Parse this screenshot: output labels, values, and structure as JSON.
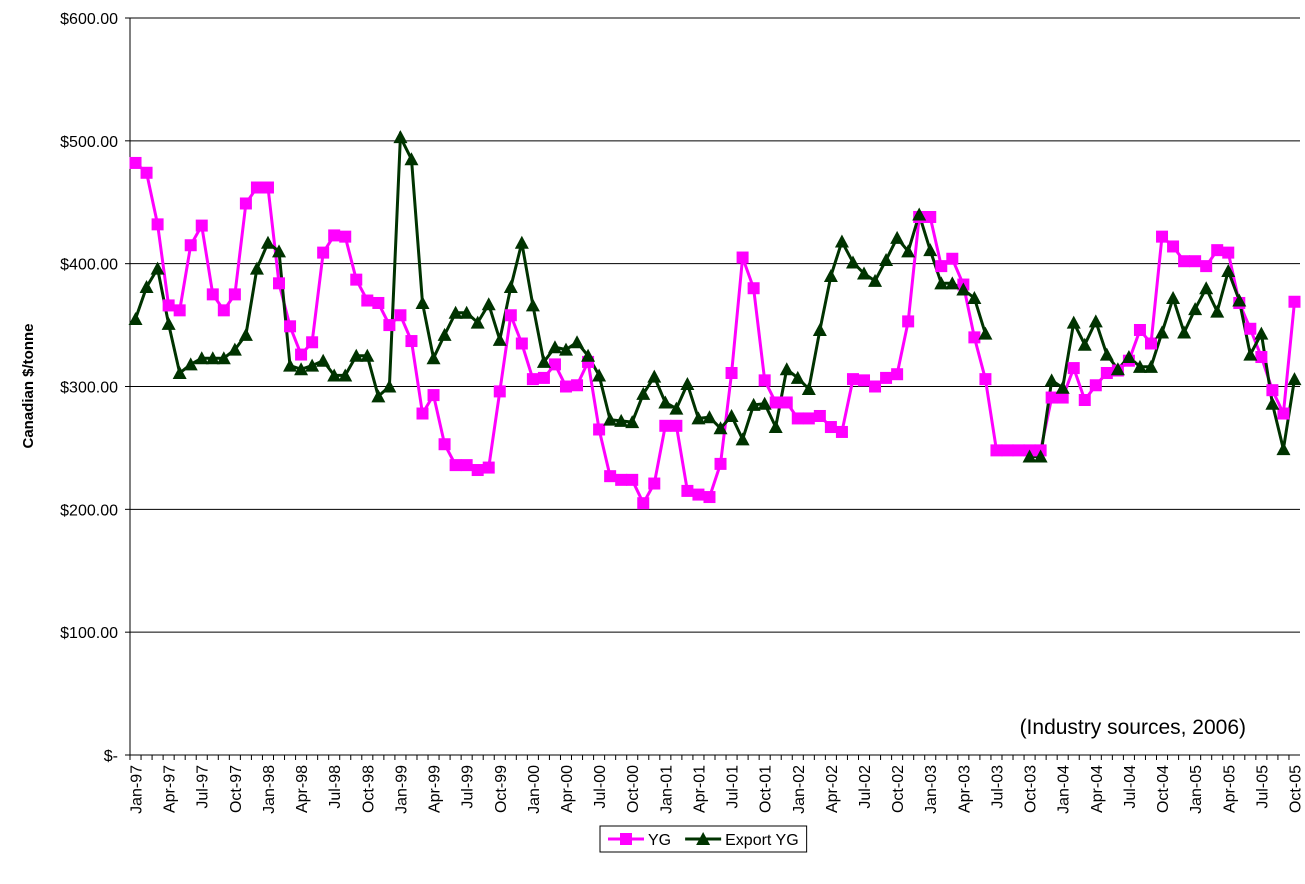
{
  "chart_data": {
    "type": "line",
    "y_label": "Canadian $/tonne",
    "annotation": "(Industry sources, 2006)",
    "categories": [
      "Jan-97",
      null,
      null,
      "Apr-97",
      null,
      null,
      "Jul-97",
      null,
      null,
      "Oct-97",
      null,
      null,
      "Jan-98",
      null,
      null,
      "Apr-98",
      null,
      null,
      "Jul-98",
      null,
      null,
      "Oct-98",
      null,
      null,
      "Jan-99",
      null,
      null,
      "Apr-99",
      null,
      null,
      "Jul-99",
      null,
      null,
      "Oct-99",
      null,
      null,
      "Jan-00",
      null,
      null,
      "Apr-00",
      null,
      null,
      "Jul-00",
      null,
      null,
      "Oct-00",
      null,
      null,
      "Jan-01",
      null,
      null,
      "Apr-01",
      null,
      null,
      "Jul-01",
      null,
      null,
      "Oct-01",
      null,
      null,
      "Jan-02",
      null,
      null,
      "Apr-02",
      null,
      null,
      "Jul-02",
      null,
      null,
      "Oct-02",
      null,
      null,
      "Jan-03",
      null,
      null,
      "Apr-03",
      null,
      null,
      "Jul-03",
      null,
      null,
      "Oct-03",
      null,
      null,
      "Jan-04",
      null,
      null,
      "Apr-04",
      null,
      null,
      "Jul-04",
      null,
      null,
      "Oct-04",
      null,
      null,
      "Jan-05",
      null,
      null,
      "Apr-05",
      null,
      null,
      "Jul-05",
      null,
      null,
      "Oct-05"
    ],
    "series": [
      {
        "name": "YG",
        "color": "#ff00ff",
        "marker": "square",
        "values": [
          482,
          474,
          432,
          366,
          362,
          415,
          431,
          375,
          362,
          375,
          449,
          462,
          462,
          384,
          349,
          326,
          336,
          409,
          423,
          422,
          387,
          370,
          368,
          350,
          358,
          337,
          278,
          293,
          253,
          236,
          236,
          232,
          234,
          296,
          358,
          335,
          306,
          307,
          318,
          300,
          301,
          320,
          265,
          227,
          224,
          224,
          205,
          221,
          268,
          268,
          215,
          212,
          210,
          237,
          311,
          405,
          380,
          305,
          287,
          287,
          274,
          274,
          276,
          267,
          263,
          306,
          305,
          300,
          307,
          310,
          353,
          438,
          438,
          398,
          404,
          383,
          340,
          306,
          248,
          248,
          248,
          248,
          248,
          291,
          291,
          315,
          289,
          301,
          311,
          313,
          321,
          346,
          335,
          422,
          414,
          402,
          402,
          398,
          411,
          409,
          368,
          347,
          324,
          297,
          278,
          369
        ]
      },
      {
        "name": "Export YG",
        "color": "#003300",
        "marker": "triangle",
        "values": [
          355,
          381,
          396,
          351,
          311,
          318,
          323,
          323,
          323,
          330,
          342,
          396,
          417,
          410,
          317,
          314,
          317,
          321,
          309,
          309,
          325,
          325,
          292,
          300,
          503,
          485,
          368,
          323,
          342,
          360,
          360,
          352,
          367,
          338,
          381,
          417,
          366,
          320,
          332,
          330,
          336,
          325,
          309,
          273,
          272,
          271,
          294,
          308,
          287,
          282,
          302,
          274,
          275,
          266,
          276,
          257,
          285,
          286,
          267,
          314,
          307,
          298,
          346,
          390,
          418,
          401,
          392,
          386,
          403,
          421,
          410,
          440,
          411,
          384,
          384,
          379,
          372,
          343,
          null,
          null,
          null,
          243,
          243,
          305,
          299,
          352,
          334,
          353,
          326,
          314,
          324,
          316,
          316,
          344,
          372,
          344,
          363,
          380,
          361,
          394,
          370,
          326,
          343,
          286,
          249,
          306
        ]
      }
    ],
    "ylim": [
      0,
      600
    ],
    "yticks": [
      {
        "value": 0,
        "label": "$-"
      },
      {
        "value": 100,
        "label": "$100.00"
      },
      {
        "value": 200,
        "label": "$200.00"
      },
      {
        "value": 300,
        "label": "$300.00"
      },
      {
        "value": 400,
        "label": "$400.00"
      },
      {
        "value": 500,
        "label": "$500.00"
      },
      {
        "value": 600,
        "label": "$600.00"
      }
    ],
    "grid": true
  }
}
